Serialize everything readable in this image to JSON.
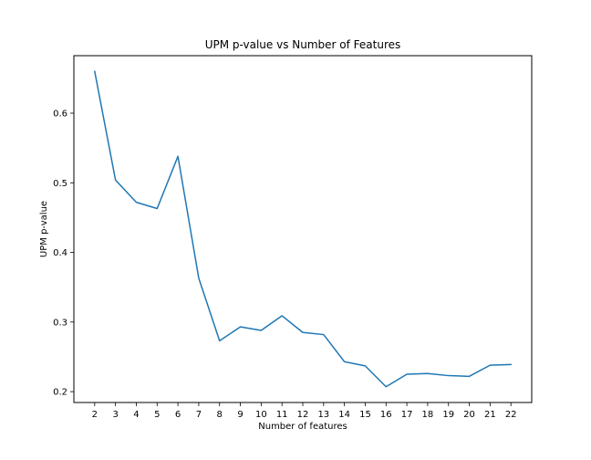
{
  "chart_data": {
    "type": "line",
    "title": "UPM p-value vs Number of Features",
    "xlabel": "Number of features",
    "ylabel": "UPM p-value",
    "x": [
      2,
      3,
      4,
      5,
      6,
      7,
      8,
      9,
      10,
      11,
      12,
      13,
      14,
      15,
      16,
      17,
      18,
      19,
      20,
      21,
      22
    ],
    "series": [
      {
        "name": "",
        "color": "#1f77b4",
        "values": [
          0.66,
          0.504,
          0.472,
          0.463,
          0.538,
          0.363,
          0.273,
          0.293,
          0.288,
          0.309,
          0.285,
          0.282,
          0.243,
          0.237,
          0.207,
          0.225,
          0.226,
          0.223,
          0.222,
          0.238,
          0.239
        ]
      }
    ],
    "xlim": [
      1.0,
      23.0
    ],
    "ylim": [
      0.1844,
      0.6826
    ],
    "yticks": [
      0.2,
      0.3,
      0.4,
      0.5,
      0.6
    ],
    "ytick_labels": [
      "0.2",
      "0.3",
      "0.4",
      "0.5",
      "0.6"
    ],
    "xticks": [
      2,
      3,
      4,
      5,
      6,
      7,
      8,
      9,
      10,
      11,
      12,
      13,
      14,
      15,
      16,
      17,
      18,
      19,
      20,
      21,
      22
    ],
    "xtick_labels": [
      "2",
      "3",
      "4",
      "5",
      "6",
      "7",
      "8",
      "9",
      "10",
      "11",
      "12",
      "13",
      "14",
      "15",
      "16",
      "17",
      "18",
      "19",
      "20",
      "21",
      "22"
    ],
    "grid": false,
    "legend": false
  }
}
